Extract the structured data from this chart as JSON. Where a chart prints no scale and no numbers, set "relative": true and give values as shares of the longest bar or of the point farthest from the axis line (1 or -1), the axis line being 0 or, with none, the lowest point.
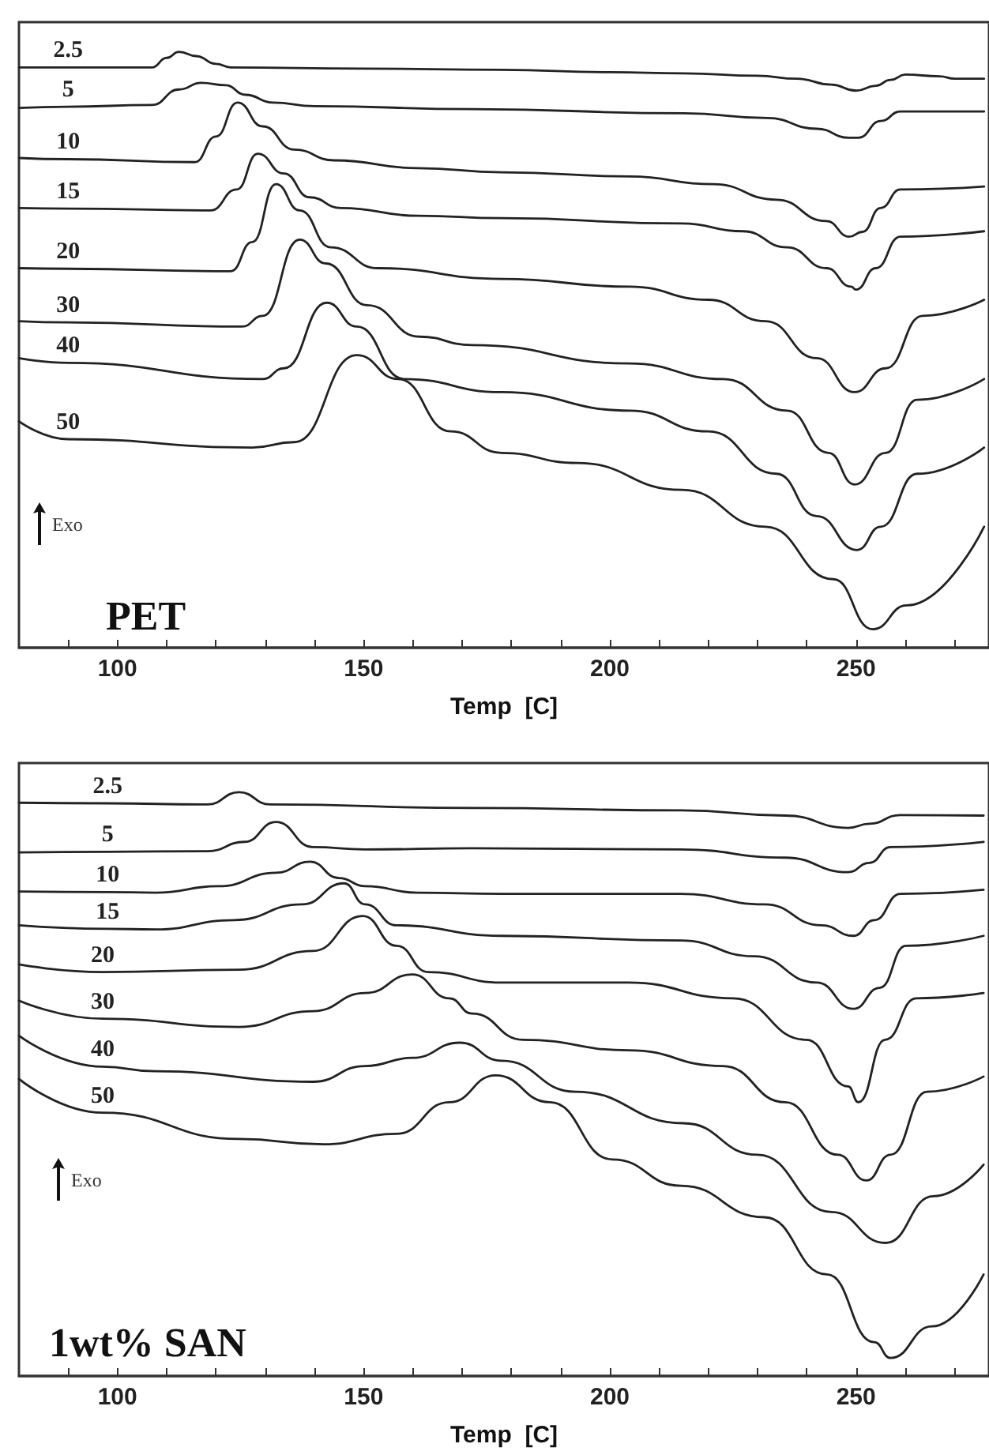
{
  "chart_data": [
    {
      "type": "line",
      "title": "PET",
      "xlabel": "Temp  [C]",
      "annotations": [
        "Exo"
      ],
      "relative": true,
      "legend": false,
      "grid": false,
      "marker": "none",
      "line_style": "solid",
      "xlim": [
        80,
        277
      ],
      "xticks": [
        {
          "value": 90,
          "label": null
        },
        100,
        {
          "value": 110,
          "label": null
        },
        {
          "value": 120,
          "label": null
        },
        {
          "value": 130,
          "label": null
        },
        {
          "value": 140,
          "label": null
        },
        150,
        {
          "value": 160,
          "label": null
        },
        {
          "value": 170,
          "label": null
        },
        {
          "value": 180,
          "label": null
        },
        {
          "value": 190,
          "label": null
        },
        200,
        {
          "value": 210,
          "label": null
        },
        {
          "value": 220,
          "label": null
        },
        {
          "value": 230,
          "label": null
        },
        {
          "value": 240,
          "label": null
        },
        250,
        {
          "value": 260,
          "label": null
        },
        {
          "value": 270,
          "label": null
        }
      ],
      "series": [
        {
          "name": "2.5",
          "color": "#222222",
          "x": [
            80,
            90,
            100,
            107,
            110,
            112.5,
            116,
            120,
            123,
            150,
            178,
            200,
            215,
            230,
            238,
            245,
            250,
            254,
            257,
            260,
            267,
            270,
            276
          ],
          "values": [
            0.974,
            0.974,
            0.974,
            0.974,
            0.99,
            1,
            0.993,
            0.98,
            0.974,
            0.972,
            0.97,
            0.966,
            0.964,
            0.96,
            0.955,
            0.945,
            0.935,
            0.943,
            0.953,
            0.962,
            0.959,
            0.955,
            0.955
          ]
        },
        {
          "name": "5",
          "color": "#222222",
          "x": [
            80,
            90,
            107,
            112.5,
            117,
            122,
            126,
            131.6,
            140,
            172,
            215,
            232,
            242,
            248.6,
            250.5,
            255,
            259,
            276
          ],
          "values": [
            0.906,
            0.908,
            0.911,
            0.937,
            0.948,
            0.944,
            0.928,
            0.915,
            0.909,
            0.904,
            0.897,
            0.889,
            0.871,
            0.856,
            0.856,
            0.884,
            0.9,
            0.9
          ]
        },
        {
          "name": "10",
          "color": "#222222",
          "x": [
            80,
            90,
            115.7,
            120,
            124.4,
            129.5,
            135.9,
            144,
            161,
            178,
            204,
            221,
            233.8,
            244,
            248.6,
            251.3,
            255,
            259,
            276
          ],
          "values": [
            0.822,
            0.82,
            0.815,
            0.858,
            0.915,
            0.875,
            0.836,
            0.818,
            0.805,
            0.798,
            0.791,
            0.778,
            0.752,
            0.716,
            0.69,
            0.698,
            0.738,
            0.769,
            0.774
          ]
        },
        {
          "name": "15",
          "color": "#222222",
          "x": [
            80,
            90,
            118.9,
            124.2,
            128.5,
            133.8,
            139,
            145.4,
            161,
            178,
            214.6,
            227,
            236,
            244,
            249,
            250,
            254,
            259,
            276
          ],
          "values": [
            0.738,
            0.737,
            0.734,
            0.769,
            0.829,
            0.796,
            0.756,
            0.738,
            0.725,
            0.721,
            0.712,
            0.699,
            0.672,
            0.637,
            0.606,
            0.601,
            0.637,
            0.69,
            0.699
          ]
        },
        {
          "name": "20",
          "color": "#222222",
          "x": [
            80,
            90,
            123,
            127.4,
            132.2,
            137,
            143.3,
            152.9,
            178,
            204,
            220,
            231.6,
            242,
            249.7,
            256,
            263.5,
            276
          ],
          "values": [
            0.637,
            0.636,
            0.632,
            0.681,
            0.778,
            0.734,
            0.672,
            0.637,
            0.619,
            0.606,
            0.584,
            0.548,
            0.486,
            0.429,
            0.469,
            0.557,
            0.584
          ]
        },
        {
          "name": "30",
          "color": "#222222",
          "x": [
            80,
            90,
            125.3,
            129.5,
            137,
            142.3,
            150.7,
            161.4,
            172,
            204,
            223,
            236,
            244.4,
            249.7,
            256,
            262.4,
            276
          ],
          "values": [
            0.548,
            0.546,
            0.539,
            0.557,
            0.685,
            0.645,
            0.575,
            0.522,
            0.508,
            0.477,
            0.451,
            0.398,
            0.327,
            0.274,
            0.327,
            0.416,
            0.451
          ]
        },
        {
          "name": "40",
          "color": "#222222",
          "x": [
            80,
            90,
            129.5,
            133.8,
            142.5,
            148.6,
            158.2,
            178,
            204,
            220,
            233.8,
            242,
            250.2,
            255,
            262.4,
            276
          ],
          "values": [
            0.486,
            0.478,
            0.451,
            0.469,
            0.579,
            0.539,
            0.451,
            0.429,
            0.398,
            0.363,
            0.292,
            0.221,
            0.164,
            0.203,
            0.292,
            0.336
          ]
        },
        {
          "name": "50",
          "color": "#222222",
          "x": [
            80,
            90,
            127.4,
            135.9,
            148.6,
            157,
            167.7,
            178,
            193.4,
            214.6,
            231.6,
            245.4,
            253.4,
            260.3,
            276
          ],
          "values": [
            0.38,
            0.35,
            0.336,
            0.345,
            0.491,
            0.451,
            0.363,
            0.327,
            0.31,
            0.265,
            0.203,
            0.115,
            0.031,
            0.071,
            0.203
          ]
        }
      ]
    },
    {
      "type": "line",
      "title": "1wt% SAN",
      "xlabel": "Temp  [C]",
      "annotations": [
        "Exo"
      ],
      "relative": true,
      "legend": false,
      "grid": false,
      "marker": "none",
      "line_style": "solid",
      "xlim": [
        80,
        277
      ],
      "xticks": [
        {
          "value": 90,
          "label": null
        },
        100,
        {
          "value": 110,
          "label": null
        },
        {
          "value": 120,
          "label": null
        },
        {
          "value": 130,
          "label": null
        },
        {
          "value": 140,
          "label": null
        },
        150,
        {
          "value": 160,
          "label": null
        },
        {
          "value": 170,
          "label": null
        },
        {
          "value": 180,
          "label": null
        },
        {
          "value": 190,
          "label": null
        },
        200,
        {
          "value": 210,
          "label": null
        },
        {
          "value": 220,
          "label": null
        },
        {
          "value": 230,
          "label": null
        },
        {
          "value": 240,
          "label": null
        },
        250,
        {
          "value": 260,
          "label": null
        },
        {
          "value": 270,
          "label": null
        }
      ],
      "series": [
        {
          "name": "2.5",
          "color": "#222222",
          "x": [
            80,
            98,
            118.3,
            124.7,
            131,
            172,
            214.4,
            235.6,
            248.4,
            252.7,
            259,
            275.9
          ],
          "values": [
            0.982,
            0.981,
            0.979,
            1,
            0.979,
            0.973,
            0.969,
            0.96,
            0.939,
            0.946,
            0.961,
            0.96
          ]
        },
        {
          "name": "5",
          "color": "#222222",
          "x": [
            80,
            98,
            118.3,
            125.8,
            132.2,
            139.7,
            150.3,
            172,
            214.4,
            235.6,
            248.4,
            252.7,
            257,
            275.9
          ],
          "values": [
            0.897,
            0.898,
            0.899,
            0.915,
            0.949,
            0.906,
            0.902,
            0.904,
            0.902,
            0.888,
            0.863,
            0.879,
            0.906,
            0.915
          ]
        },
        {
          "name": "10",
          "color": "#222222",
          "x": [
            80,
            98,
            107.7,
            120.5,
            132.2,
            139.1,
            145,
            150.3,
            161,
            178,
            214.4,
            231.4,
            243,
            249.5,
            253.7,
            259,
            275.9
          ],
          "values": [
            0.83,
            0.829,
            0.828,
            0.839,
            0.862,
            0.881,
            0.853,
            0.839,
            0.828,
            0.826,
            0.826,
            0.808,
            0.772,
            0.754,
            0.781,
            0.826,
            0.833
          ]
        },
        {
          "name": "15",
          "color": "#222222",
          "x": [
            80,
            98,
            107.7,
            123.7,
            137.5,
            146,
            150.3,
            156.7,
            178,
            214.4,
            229.3,
            242,
            249.5,
            254.8,
            260.1,
            275.9
          ],
          "values": [
            0.772,
            0.766,
            0.765,
            0.781,
            0.808,
            0.844,
            0.808,
            0.772,
            0.754,
            0.746,
            0.719,
            0.674,
            0.629,
            0.665,
            0.737,
            0.754
          ]
        },
        {
          "name": "20",
          "color": "#222222",
          "x": [
            80,
            97,
            124.7,
            139.7,
            149.8,
            156.7,
            163.1,
            178,
            203.7,
            225,
            239.9,
            248.4,
            250.5,
            255.9,
            262.2,
            275.9
          ],
          "values": [
            0.705,
            0.692,
            0.696,
            0.728,
            0.788,
            0.737,
            0.692,
            0.674,
            0.674,
            0.647,
            0.576,
            0.496,
            0.469,
            0.576,
            0.647,
            0.656
          ]
        },
        {
          "name": "30",
          "color": "#222222",
          "x": [
            80,
            97,
            124.7,
            139.7,
            150.3,
            159.9,
            167.4,
            172,
            182.4,
            203.7,
            222.9,
            235.6,
            246.3,
            252.1,
            257,
            264.4,
            275.9
          ],
          "values": [
            0.643,
            0.612,
            0.598,
            0.625,
            0.656,
            0.688,
            0.647,
            0.621,
            0.576,
            0.558,
            0.531,
            0.469,
            0.379,
            0.335,
            0.379,
            0.487,
            0.513
          ]
        },
        {
          "name": "40",
          "color": "#222222",
          "x": [
            80,
            97,
            107.7,
            139.7,
            150.3,
            159.9,
            169.5,
            178,
            193,
            215,
            230,
            245,
            256,
            265.7,
            275.9
          ],
          "values": [
            0.583,
            0.53,
            0.522,
            0.504,
            0.531,
            0.545,
            0.571,
            0.54,
            0.487,
            0.433,
            0.379,
            0.281,
            0.228,
            0.308,
            0.362
          ]
        },
        {
          "name": "50",
          "color": "#222222",
          "x": [
            80,
            97,
            124.7,
            141.8,
            156.7,
            167.4,
            176.8,
            187.8,
            200.5,
            214.4,
            231.4,
            244.1,
            253.7,
            257,
            265.4,
            275.9
          ],
          "values": [
            0.509,
            0.451,
            0.406,
            0.397,
            0.415,
            0.469,
            0.515,
            0.469,
            0.371,
            0.326,
            0.272,
            0.174,
            0.058,
            0.031,
            0.085,
            0.174
          ]
        }
      ]
    }
  ]
}
